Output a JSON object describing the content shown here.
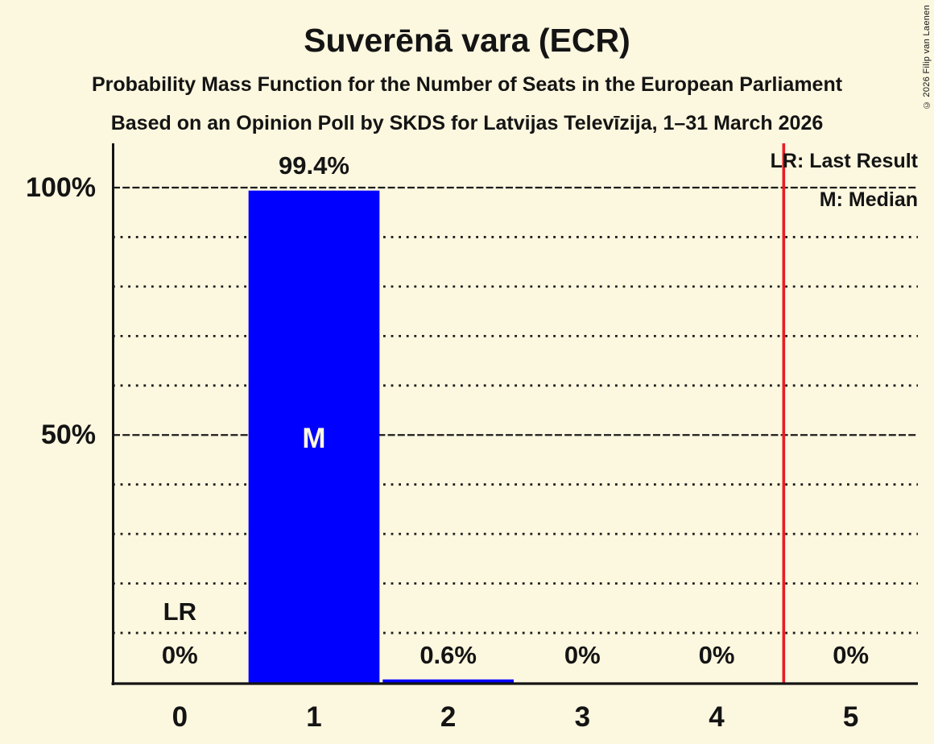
{
  "page": {
    "background_color": "#FCF7DF",
    "text_color": "#141414",
    "copyright": "© 2026 Filip van Laenen"
  },
  "header": {
    "title": "Suverēnā vara (ECR)",
    "subtitle1": "Probability Mass Function for the Number of Seats in the European Parliament",
    "subtitle2": "Based on an Opinion Poll by SKDS for Latvijas Televīzija, 1–31 March 2026"
  },
  "legend": {
    "lr": "LR: Last Result",
    "m": "M: Median"
  },
  "chart_data": {
    "type": "bar",
    "title": "Suverēnā vara (ECR)",
    "categories": [
      "0",
      "1",
      "2",
      "3",
      "4",
      "5"
    ],
    "values": [
      0,
      99.4,
      0.6,
      0,
      0,
      0
    ],
    "value_labels": [
      "0%",
      "99.4%",
      "0.6%",
      "0%",
      "0%",
      "0%"
    ],
    "ylim": [
      0,
      100
    ],
    "yticks": [
      {
        "value": 100,
        "label": "100%"
      },
      {
        "value": 50,
        "label": "50%"
      }
    ],
    "minor_grid_step": 10,
    "grid": "dotted minor lines every 10%, dashed major lines at 50% and 100%",
    "legend_position": "top-right",
    "annotations": {
      "last_result_label": "LR",
      "last_result_seat_index": 0,
      "median_label": "M",
      "median_seat_index": 1,
      "red_line_position": 4.5
    },
    "colors": {
      "bar": "#0000FF",
      "median_text": "#FCF7DF",
      "red_line": "#EC1B23",
      "grid": "#1C1C1C",
      "axis": "#141414"
    }
  }
}
